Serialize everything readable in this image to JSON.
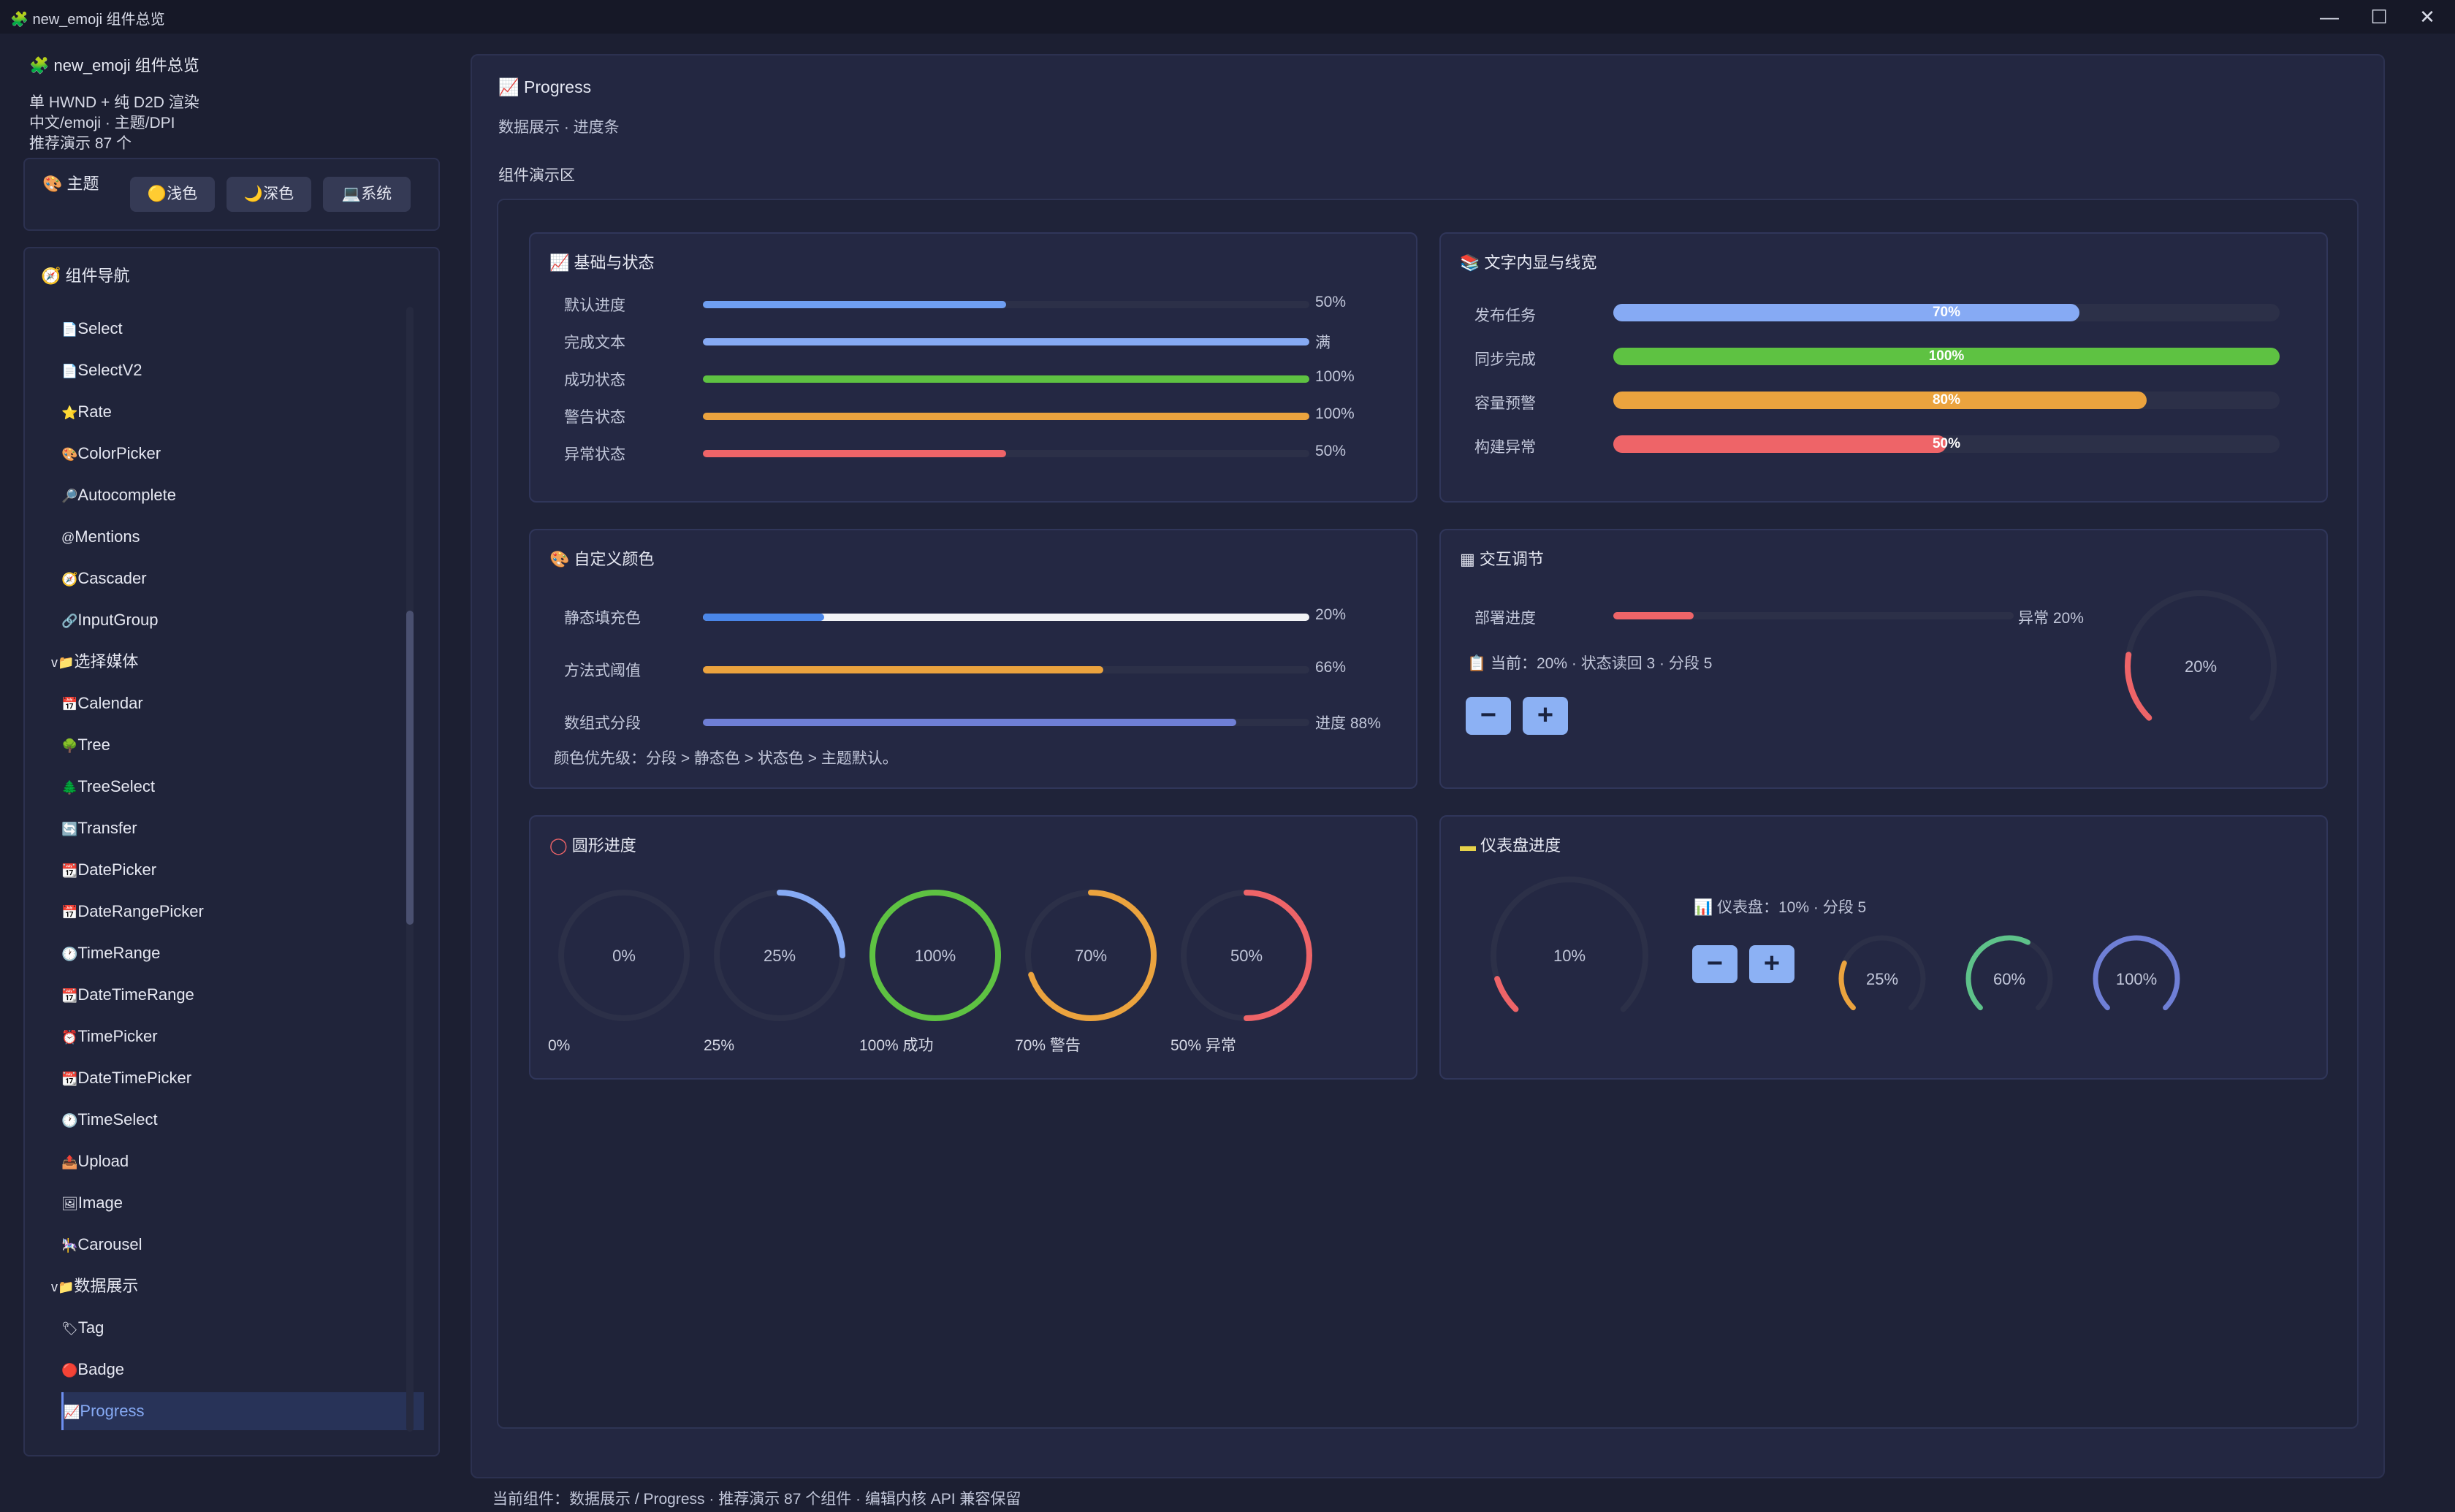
{
  "window": {
    "title": "new_emoji 组件总览",
    "app_icon": "puzzle-icon"
  },
  "sidebar": {
    "app_title": "new_emoji 组件总览",
    "subtitle1": "单 HWND + 纯 D2D 渲染",
    "subtitle2": "中文/emoji · 主题/DPI",
    "subtitle3": "推荐演示 87 个",
    "theme": {
      "label": "主题",
      "light": "浅色",
      "dark": "深色",
      "system": "系统"
    },
    "nav_title": "组件导航",
    "items": [
      {
        "label": "Select",
        "icon": "📄"
      },
      {
        "label": "SelectV2",
        "icon": "📄"
      },
      {
        "label": "Rate",
        "icon": "⭐"
      },
      {
        "label": "ColorPicker",
        "icon": "🎨"
      },
      {
        "label": "Autocomplete",
        "icon": "🔎"
      },
      {
        "label": "Mentions",
        "icon": "@"
      },
      {
        "label": "Cascader",
        "icon": "🧭"
      },
      {
        "label": "InputGroup",
        "icon": "🔗"
      },
      {
        "label": "选择媒体",
        "icon": "v📁",
        "group": true
      },
      {
        "label": "Calendar",
        "icon": "📅"
      },
      {
        "label": "Tree",
        "icon": "🌳"
      },
      {
        "label": "TreeSelect",
        "icon": "🌲"
      },
      {
        "label": "Transfer",
        "icon": "🔄"
      },
      {
        "label": "DatePicker",
        "icon": "📆"
      },
      {
        "label": "DateRangePicker",
        "icon": "📅"
      },
      {
        "label": "TimeRange",
        "icon": "🕐"
      },
      {
        "label": "DateTimeRange",
        "icon": "📆"
      },
      {
        "label": "TimePicker",
        "icon": "⏰"
      },
      {
        "label": "DateTimePicker",
        "icon": "📆"
      },
      {
        "label": "TimeSelect",
        "icon": "🕐"
      },
      {
        "label": "Upload",
        "icon": "📤"
      },
      {
        "label": "Image",
        "icon": "🖼"
      },
      {
        "label": "Carousel",
        "icon": "🎠"
      },
      {
        "label": "数据展示",
        "icon": "v📁",
        "group": true
      },
      {
        "label": "Tag",
        "icon": "🏷"
      },
      {
        "label": "Badge",
        "icon": "🔴"
      },
      {
        "label": "Progress",
        "icon": "📈",
        "active": true
      }
    ]
  },
  "main": {
    "title": "Progress",
    "subtitle": "数据展示 · 进度条",
    "demo_label": "组件演示区",
    "basic": {
      "title": "基础与状态",
      "rows": [
        {
          "label": "默认进度",
          "value": 0.5,
          "text": "50%",
          "color": "#6f9ff2"
        },
        {
          "label": "完成文本",
          "value": 1.0,
          "text": "满",
          "color": "#86aaf4"
        },
        {
          "label": "成功状态",
          "value": 1.0,
          "text": "100%",
          "color": "#5ec242"
        },
        {
          "label": "警告状态",
          "value": 1.0,
          "text": "100%",
          "color": "#eba33e"
        },
        {
          "label": "异常状态",
          "value": 0.5,
          "text": "50%",
          "color": "#ee6468"
        }
      ]
    },
    "inner": {
      "title": "文字内显与线宽",
      "rows": [
        {
          "label": "发布任务",
          "value": 0.7,
          "text": "70%",
          "color": "#86aaf4"
        },
        {
          "label": "同步完成",
          "value": 1.0,
          "text": "100%",
          "color": "#5ec242"
        },
        {
          "label": "容量预警",
          "value": 0.8,
          "text": "80%",
          "color": "#eba33e"
        },
        {
          "label": "构建异常",
          "value": 0.5,
          "text": "50%",
          "color": "#ee6468"
        }
      ]
    },
    "custom": {
      "title": "自定义颜色",
      "rows": [
        {
          "label": "静态填充色",
          "value": 0.2,
          "text": "20%",
          "color": "#4a86e8",
          "track": "#f2f3f6"
        },
        {
          "label": "方法式阈值",
          "value": 0.66,
          "text": "66%",
          "color": "#eba33e"
        },
        {
          "label": "数组式分段",
          "value": 0.88,
          "text": "进度 88%",
          "color": "#6f7fd6"
        }
      ],
      "note": "颜色优先级：分段 > 静态色 > 状态色 > 主题默认。"
    },
    "interactive": {
      "title": "交互调节",
      "label": "部署进度",
      "value": 0.2,
      "text": "异常 20%",
      "color": "#ee6468",
      "status": "当前：20% · 状态读回 3 · 分段 5",
      "circle_text": "20%"
    },
    "circle": {
      "title": "圆形进度",
      "items": [
        {
          "value": 0.0,
          "center": "0%",
          "caption": "0%",
          "color": "#6f9ff2"
        },
        {
          "value": 0.25,
          "center": "25%",
          "caption": "25%",
          "color": "#86aaf4"
        },
        {
          "value": 1.0,
          "center": "100%",
          "caption": "100% 成功",
          "color": "#5ec242"
        },
        {
          "value": 0.7,
          "center": "70%",
          "caption": "70% 警告",
          "color": "#eba33e"
        },
        {
          "value": 0.5,
          "center": "50%",
          "caption": "50% 异常",
          "color": "#ee6468"
        }
      ]
    },
    "gauge": {
      "title": "仪表盘进度",
      "status": "仪表盘：10% · 分段 5",
      "main": {
        "value": 0.1,
        "center": "10%",
        "color": "#ee6468"
      },
      "small": [
        {
          "value": 0.25,
          "center": "25%",
          "color": "#eba33e"
        },
        {
          "value": 0.6,
          "center": "60%",
          "color": "#5ec28a"
        },
        {
          "value": 1.0,
          "center": "100%",
          "color": "#6f7fd6"
        }
      ]
    }
  },
  "status_bar": "当前组件：数据展示 / Progress · 推荐演示 87 个组件 · 编辑内核 API 兼容保留"
}
